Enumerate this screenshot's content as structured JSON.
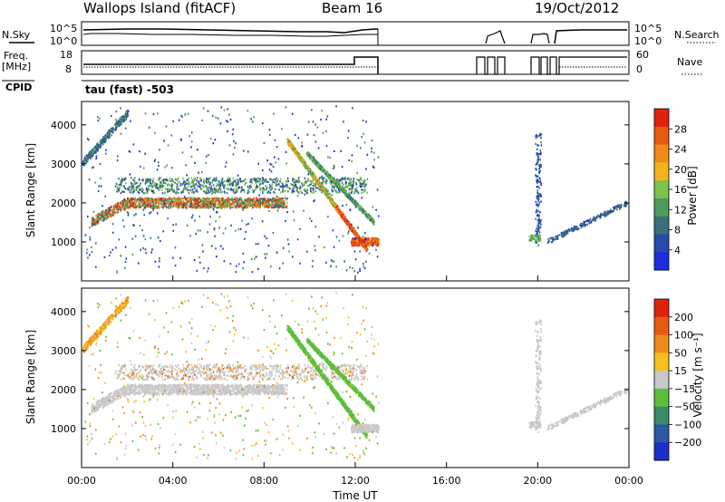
{
  "header": {
    "title": "Wallops Island (fitACF)",
    "beam": "Beam 16",
    "date": "19/Oct/2012"
  },
  "panels": {
    "nsky_label": "N.Sky",
    "nsky_top_tick": "10^5",
    "nsky_bottom_tick": "10^0",
    "nsearch_label": "N.Search",
    "nsearch_top_tick": "10^5",
    "nsearch_bottom_tick": "10^0",
    "freq_label_1": "Freq.",
    "freq_label_2": "[MHz]",
    "freq_top_tick": "18",
    "freq_bottom_tick": "8",
    "nave_label": "Nave",
    "nave_top_tick": "60",
    "nave_bottom_tick": "0",
    "cpid_label": "CPID",
    "cpid_value": "tau (fast) -503"
  },
  "chart_data": [
    {
      "type": "heatmap",
      "name": "power",
      "ylabel": "Slant Range [km]",
      "yticks": [
        "1000",
        "2000",
        "3000",
        "4000"
      ],
      "colorbar_label": "Power [dB]",
      "colorbar_ticks": [
        "4",
        "8",
        "12",
        "16",
        "20",
        "24",
        "28"
      ],
      "colorbar_colors": [
        "#1a2ee0",
        "#2a4aa8",
        "#3a6f7a",
        "#4e9a5a",
        "#7cc24c",
        "#f2b21a",
        "#f08a18",
        "#e85a12",
        "#e02010"
      ],
      "features": [
        {
          "label": "main echo band",
          "range_km": 2000,
          "from_ut": "00:30",
          "to_ut": "09:00"
        },
        {
          "label": "descending trace",
          "from_ut": "09:00",
          "to_ut": "12:30",
          "range_start_km": 3600,
          "range_end_km": 800
        }
      ]
    },
    {
      "type": "heatmap",
      "name": "velocity",
      "ylabel": "Slant Range [km]",
      "xlabel": "Time UT",
      "yticks": [
        "1000",
        "2000",
        "3000",
        "4000"
      ],
      "xticks": [
        "00:00",
        "04:00",
        "08:00",
        "12:00",
        "16:00",
        "20:00",
        "00:00"
      ],
      "colorbar_label": "Velocity [m s⁻¹]",
      "colorbar_ticks": [
        "200",
        "100",
        "50",
        "15",
        "−15",
        "−50",
        "−100",
        "−200"
      ],
      "colorbar_colors": [
        "#1a30c8",
        "#2c58a8",
        "#3a8a6a",
        "#5cbf3c",
        "#c8c8c8",
        "#f5c020",
        "#f08a18",
        "#e85a12",
        "#e02010"
      ]
    }
  ],
  "colors": {
    "power_low": "#1a2ee0",
    "power_mid": "#4e9a5a",
    "power_high": "#e02010",
    "gray_band": "#c8c8c8"
  }
}
